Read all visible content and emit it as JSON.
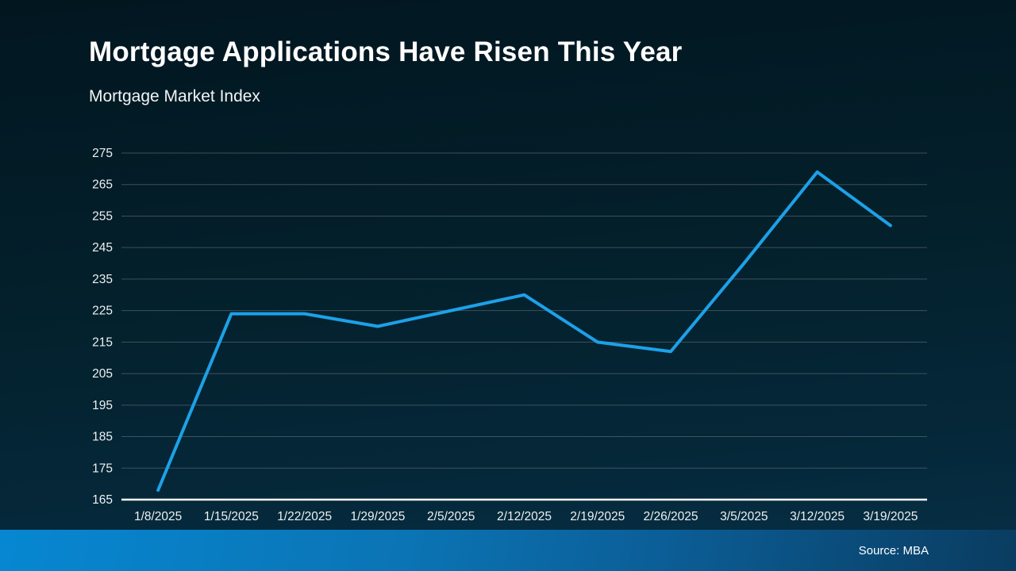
{
  "slide": {
    "title": "Mortgage Applications Have Risen This Year",
    "subtitle": "Mortgage Market Index",
    "source_label": "Source: MBA"
  },
  "colors": {
    "background_top": "#021620",
    "background_bottom": "#073048",
    "line": "#1da1e8",
    "gridline": "#66707599",
    "axis_line": "#ffffff",
    "tick_label": "#edf1f2",
    "title_text": "#ffffff",
    "footer_left": "#0787d2",
    "footer_right": "#0a3c60"
  },
  "chart_data": {
    "type": "line",
    "title": "Mortgage Applications Have Risen This Year",
    "subtitle": "Mortgage Market Index",
    "x": [
      "1/8/2025",
      "1/15/2025",
      "1/22/2025",
      "1/29/2025",
      "2/5/2025",
      "2/12/2025",
      "2/19/2025",
      "2/26/2025",
      "3/5/2025",
      "3/12/2025",
      "3/19/2025"
    ],
    "series": [
      {
        "name": "Mortgage Market Index",
        "values": [
          168,
          224,
          224,
          220,
          225,
          230,
          215,
          212,
          240,
          269,
          252
        ]
      }
    ],
    "ylim": [
      165,
      275
    ],
    "ytick_step": 10,
    "yticks": [
      165,
      175,
      185,
      195,
      205,
      215,
      225,
      235,
      245,
      255,
      265,
      275
    ],
    "xlabel": "",
    "ylabel": "",
    "grid": true,
    "legend": false,
    "source": "Source: MBA"
  }
}
